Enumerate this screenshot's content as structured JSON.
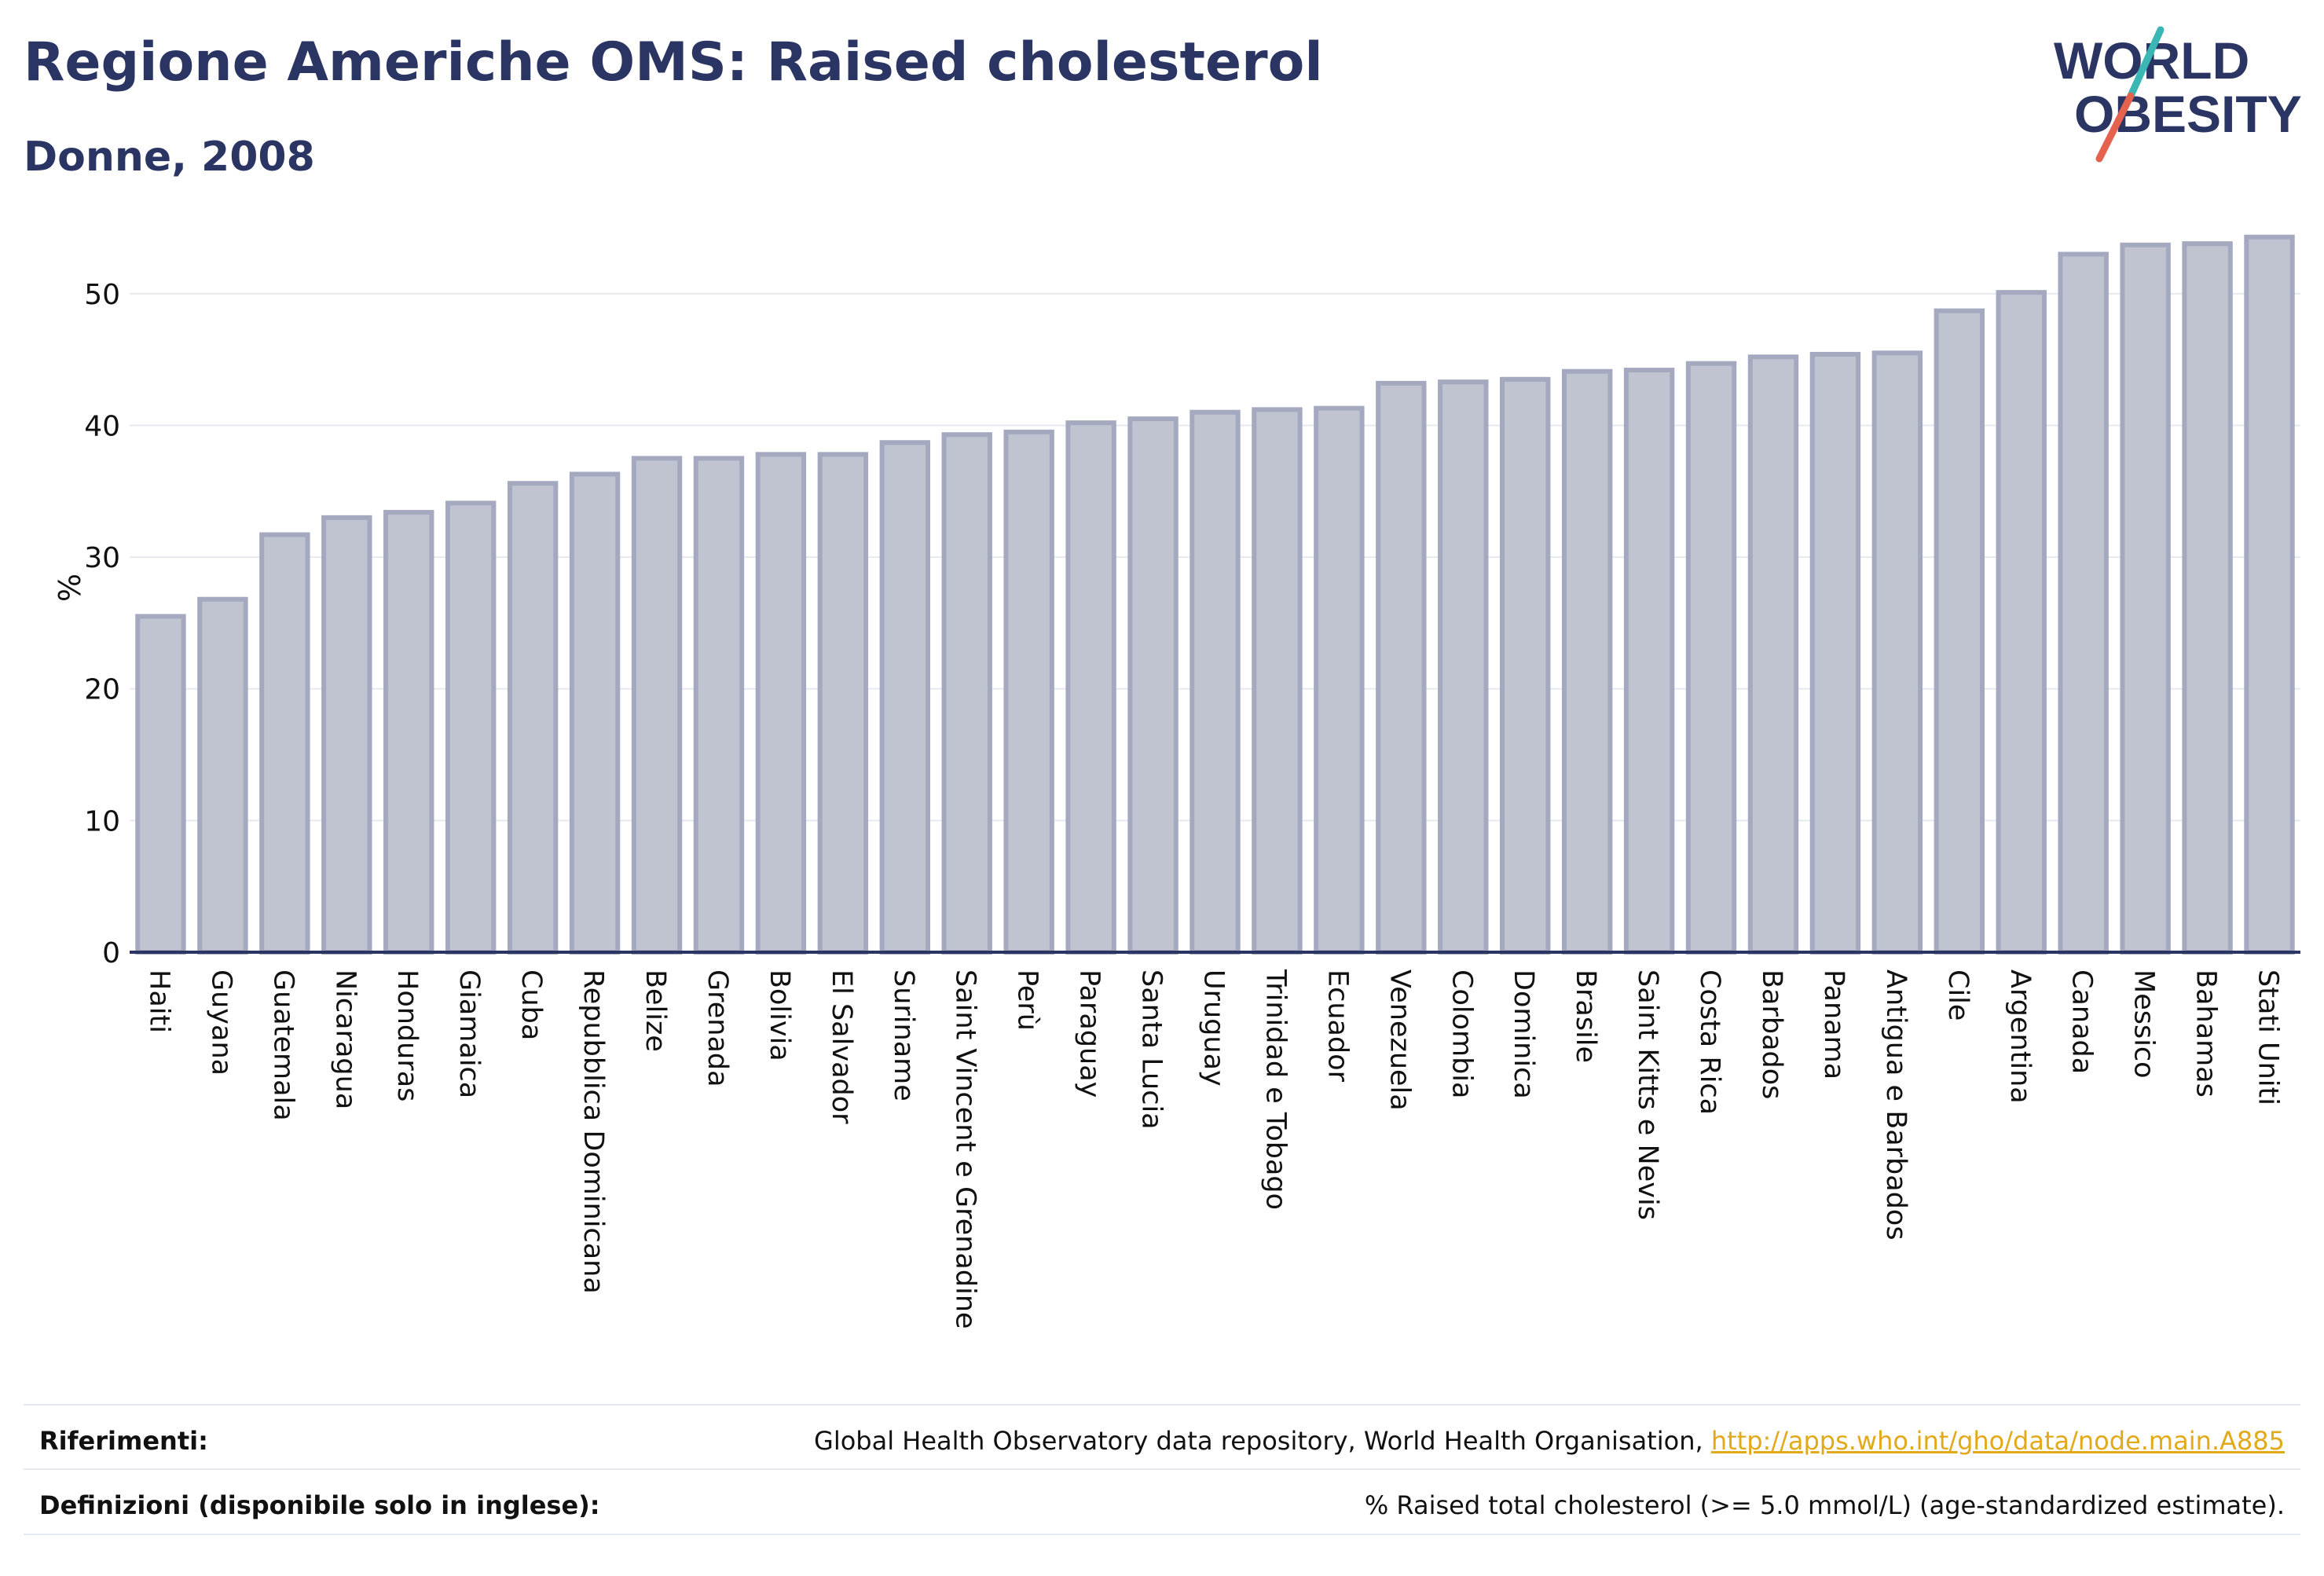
{
  "header": {
    "title": "Regione Americhe OMS: Raised cholesterol",
    "subtitle": "Donne, 2008"
  },
  "logo": {
    "line1": "WORLD",
    "line2": "OBESITY"
  },
  "colors": {
    "bar_fill": "#c0c3d0",
    "bar_stroke": "#a4a9c0",
    "baseline": "#2a3563",
    "grid": "#e6e9ef",
    "title": "#2a3563",
    "logo_teal": "#3ab7b5",
    "logo_red": "#e5624f",
    "link": "#e2a91a"
  },
  "chart_data": {
    "type": "bar",
    "title": "Regione Americhe OMS: Raised cholesterol",
    "subtitle": "Donne, 2008",
    "xlabel": "",
    "ylabel": "%",
    "ylim": [
      0,
      55
    ],
    "yticks": [
      0,
      10,
      20,
      30,
      40,
      50
    ],
    "grid": true,
    "categories": [
      "Haiti",
      "Guyana",
      "Guatemala",
      "Nicaragua",
      "Honduras",
      "Giamaica",
      "Cuba",
      "Repubblica Dominicana",
      "Belize",
      "Grenada",
      "Bolivia",
      "El Salvador",
      "Suriname",
      "Saint Vincent e Grenadine",
      "Perù",
      "Paraguay",
      "Santa Lucia",
      "Uruguay",
      "Trinidad e Tobago",
      "Ecuador",
      "Venezuela",
      "Colombia",
      "Dominica",
      "Brasile",
      "Saint Kitts e Nevis",
      "Costa Rica",
      "Barbados",
      "Panama",
      "Antigua e Barbados",
      "Cile",
      "Argentina",
      "Canada",
      "Messico",
      "Bahamas",
      "Stati Uniti"
    ],
    "values": [
      25.5,
      26.8,
      31.7,
      33.0,
      33.4,
      34.1,
      35.6,
      36.3,
      37.5,
      37.5,
      37.8,
      37.8,
      38.7,
      39.3,
      39.5,
      40.2,
      40.5,
      41.0,
      41.2,
      41.3,
      43.2,
      43.3,
      43.5,
      44.1,
      44.2,
      44.7,
      45.2,
      45.4,
      45.5,
      48.7,
      50.1,
      53.0,
      53.7,
      53.8,
      54.3
    ]
  },
  "references": {
    "label": "Riferimenti:",
    "text": "Global Health Observatory data repository, World Health Organisation, ",
    "link": "http://apps.who.int/gho/data/node.main.A885"
  },
  "definitions": {
    "label": "Definizioni (disponibile solo in inglese):",
    "text": "% Raised total cholesterol (>= 5.0 mmol/L) (age-standardized estimate)."
  }
}
